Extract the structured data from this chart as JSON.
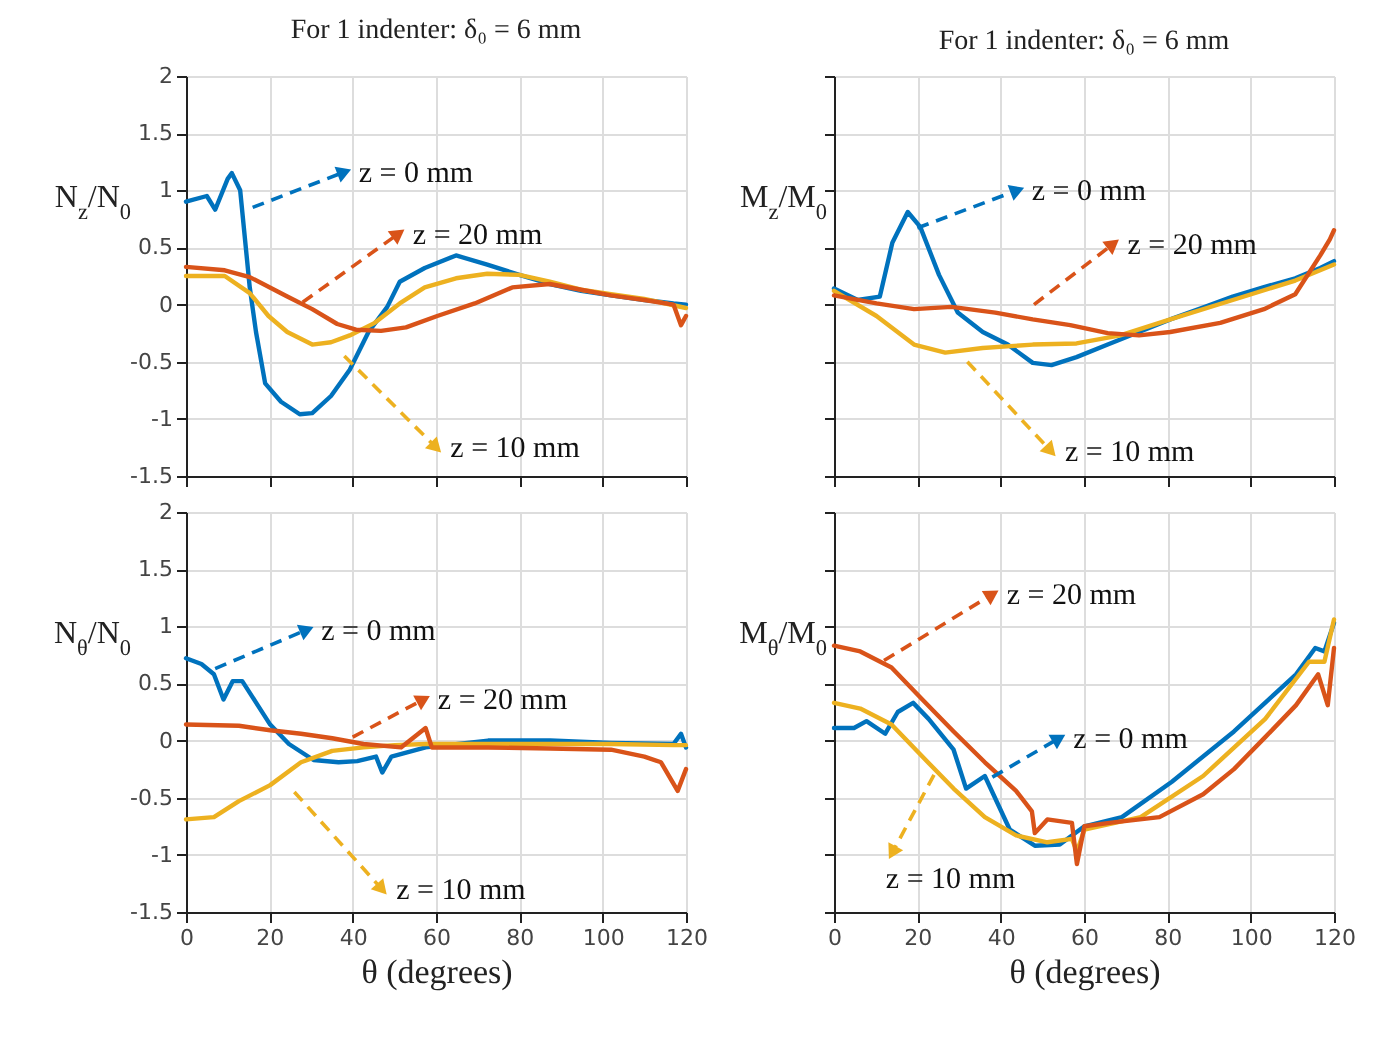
{
  "chart_data": [
    {
      "type": "line",
      "title": "For 1 indenter:  δ₀ = 6 mm",
      "ylabel": "N$_{z}$/N$_{0}$",
      "xlim": [
        0,
        120
      ],
      "ylim": [
        -1.5,
        2
      ],
      "xticks": [
        0,
        20,
        40,
        60,
        80,
        100,
        120
      ],
      "yticks": [
        -1.5,
        -1,
        -0.5,
        0,
        0.5,
        1,
        1.5,
        2
      ],
      "grid": true,
      "tick_labels": "y",
      "legend": "right",
      "series": [
        {
          "name": "z = 0 mm",
          "color": "#0072bd",
          "x": [
            0,
            5,
            7,
            10,
            11,
            13,
            15.3,
            16.8,
            19,
            22.8,
            27.3,
            30.3,
            34.8,
            39.3,
            43.8,
            48.3,
            51.3,
            57.3,
            64.8,
            72.3,
            80,
            87.3,
            94.8,
            102,
            110,
            117,
            120
          ],
          "values": [
            0.9,
            0.95,
            0.83,
            1.1,
            1.15,
            1.0,
            0.15,
            -0.24,
            -0.69,
            -0.85,
            -0.96,
            -0.95,
            -0.8,
            -0.57,
            -0.24,
            -0.02,
            0.2,
            0.32,
            0.43,
            0.35,
            0.26,
            0.18,
            0.12,
            0.08,
            0.04,
            0.01,
            0
          ]
        },
        {
          "name": "z = 10 mm",
          "color": "#edb120",
          "x": [
            0,
            9.3,
            15.3,
            19.8,
            24.3,
            30.3,
            34.8,
            39.3,
            45.3,
            51.3,
            57.3,
            64.8,
            72.3,
            80,
            87.3,
            94.8,
            102,
            110,
            120
          ],
          "values": [
            0.25,
            0.25,
            0.1,
            -0.1,
            -0.24,
            -0.35,
            -0.33,
            -0.27,
            -0.16,
            0.01,
            0.15,
            0.23,
            0.27,
            0.26,
            0.2,
            0.13,
            0.09,
            0.05,
            -0.03
          ]
        },
        {
          "name": "z = 20 mm",
          "color": "#d95319",
          "x": [
            0,
            9.3,
            15.3,
            24.3,
            30.3,
            36.3,
            40.8,
            46.8,
            52.8,
            60.3,
            69.3,
            78.3,
            87.3,
            94.8,
            102,
            110,
            117,
            118.8,
            120
          ],
          "values": [
            0.33,
            0.3,
            0.24,
            0.07,
            -0.04,
            -0.17,
            -0.22,
            -0.23,
            -0.2,
            -0.1,
            0.01,
            0.15,
            0.18,
            0.13,
            0.08,
            0.04,
            0,
            -0.18,
            -0.1
          ]
        }
      ]
    },
    {
      "type": "line",
      "title": "For 1 indenter:  δ₀ = 6 mm",
      "ylabel": "M$_{z}$/M$_{0}$",
      "xlim": [
        0,
        120
      ],
      "ylim": [
        -1.5,
        2
      ],
      "xticks": [
        0,
        20,
        40,
        60,
        80,
        100,
        120
      ],
      "yticks": [
        -1.5,
        -1,
        -0.5,
        0,
        0.5,
        1,
        1.5,
        2
      ],
      "grid": true,
      "tick_labels": false,
      "legend": "right",
      "series": [
        {
          "name": "z = 0 mm",
          "color": "#0072bd",
          "x": [
            0,
            5.7,
            11,
            14,
            17.7,
            20.7,
            25.2,
            29.7,
            35.7,
            41.7,
            47.7,
            52.2,
            58.2,
            65.7,
            73.2,
            80.7,
            88.2,
            95.7,
            103,
            110.7,
            116.7,
            120
          ],
          "values": [
            0.14,
            0.04,
            0.07,
            0.54,
            0.81,
            0.68,
            0.26,
            -0.07,
            -0.24,
            -0.35,
            -0.51,
            -0.53,
            -0.46,
            -0.35,
            -0.24,
            -0.13,
            -0.03,
            0.07,
            0.15,
            0.23,
            0.32,
            0.38
          ]
        },
        {
          "name": "z = 10 mm",
          "color": "#edb120",
          "x": [
            0,
            10.2,
            19.2,
            26.7,
            35.7,
            47.7,
            58.2,
            68.7,
            80.7,
            95.7,
            110.7,
            120
          ],
          "values": [
            0.12,
            -0.1,
            -0.35,
            -0.42,
            -0.38,
            -0.35,
            -0.34,
            -0.27,
            -0.13,
            0.04,
            0.21,
            0.35
          ]
        },
        {
          "name": "z = 20 mm",
          "color": "#d95319",
          "x": [
            0,
            10.2,
            19.2,
            28.2,
            38.7,
            47.7,
            56.7,
            65.7,
            73.2,
            80.7,
            92.7,
            103.2,
            110.7,
            116.7,
            119,
            120
          ],
          "values": [
            0.08,
            0.01,
            -0.04,
            -0.02,
            -0.07,
            -0.13,
            -0.18,
            -0.25,
            -0.27,
            -0.24,
            -0.16,
            -0.04,
            0.09,
            0.43,
            0.57,
            0.65
          ]
        }
      ]
    },
    {
      "type": "line",
      "xlabel": "θ (degrees)",
      "ylabel": "N$_{θ}$/N$_{0}$",
      "xlim": [
        0,
        120
      ],
      "ylim": [
        -1.5,
        2
      ],
      "xticks": [
        0,
        20,
        40,
        60,
        80,
        100,
        120
      ],
      "yticks": [
        -1.5,
        -1,
        -0.5,
        0,
        0.5,
        1,
        1.5,
        2
      ],
      "grid": true,
      "legend": "bottom left",
      "series": [
        {
          "name": "z = 0 mm",
          "color": "#0072bd",
          "x": [
            0,
            3.7,
            6.7,
            9,
            11.2,
            13.5,
            17.2,
            20.2,
            24.7,
            30.6,
            36.6,
            41.1,
            45.6,
            47.1,
            49.3,
            57.5,
            72.5,
            87.4,
            102,
            117,
            118.8,
            120
          ],
          "values": [
            0.72,
            0.67,
            0.58,
            0.36,
            0.52,
            0.52,
            0.31,
            0.14,
            -0.03,
            -0.17,
            -0.19,
            -0.18,
            -0.14,
            -0.28,
            -0.14,
            -0.06,
            0,
            0,
            -0.02,
            -0.03,
            0.06,
            -0.06
          ]
        },
        {
          "name": "z = 10 mm",
          "color": "#edb120",
          "x": [
            0,
            6.7,
            12.7,
            20.2,
            27.6,
            35.1,
            42.6,
            50.1,
            57.5,
            72.5,
            87.4,
            102,
            117,
            120
          ],
          "values": [
            -0.69,
            -0.67,
            -0.53,
            -0.39,
            -0.19,
            -0.09,
            -0.06,
            -0.04,
            -0.03,
            -0.03,
            -0.03,
            -0.03,
            -0.04,
            -0.04
          ]
        },
        {
          "name": "z = 20 mm",
          "color": "#d95319",
          "x": [
            0,
            12.7,
            20.2,
            27.6,
            35.1,
            42.6,
            51.6,
            57.5,
            59,
            72.5,
            87.4,
            102,
            110,
            114,
            118,
            120
          ],
          "values": [
            0.14,
            0.13,
            0.09,
            0.06,
            0.02,
            -0.03,
            -0.06,
            0.11,
            -0.06,
            -0.06,
            -0.07,
            -0.08,
            -0.14,
            -0.19,
            -0.44,
            -0.25
          ]
        }
      ]
    },
    {
      "type": "line",
      "xlabel": "θ (degrees)",
      "ylabel": "M$_{θ}$/M$_{0}$",
      "xlim": [
        0,
        120
      ],
      "ylim": [
        -1.5,
        2
      ],
      "xticks": [
        0,
        20,
        40,
        60,
        80,
        100,
        120
      ],
      "yticks": [
        -1.5,
        -1,
        -0.5,
        0,
        0.5,
        1,
        1.5,
        2
      ],
      "grid": true,
      "tick_labels": "x",
      "legend": "center",
      "series": [
        {
          "name": "z = 0 mm",
          "color": "#0072bd",
          "x": [
            0,
            4.8,
            7.8,
            12.3,
            15.3,
            19,
            22.7,
            28.7,
            31.7,
            36.2,
            42.2,
            48.2,
            54.2,
            60.1,
            69.1,
            81.1,
            96,
            110.9,
            115.5,
            117.7,
            120
          ],
          "values": [
            0.11,
            0.11,
            0.17,
            0.06,
            0.25,
            0.33,
            0.19,
            -0.08,
            -0.42,
            -0.31,
            -0.78,
            -0.92,
            -0.91,
            -0.75,
            -0.67,
            -0.36,
            0.08,
            0.58,
            0.81,
            0.78,
            1.03
          ]
        },
        {
          "name": "z = 10 mm",
          "color": "#edb120",
          "x": [
            0,
            6.3,
            13.8,
            21.2,
            28.7,
            36.2,
            43.7,
            51.2,
            57.1,
            58.3,
            60.1,
            73.6,
            88.6,
            103.5,
            114,
            117.7,
            120
          ],
          "values": [
            0.33,
            0.28,
            0.14,
            -0.14,
            -0.42,
            -0.67,
            -0.83,
            -0.89,
            -0.86,
            -0.97,
            -0.78,
            -0.67,
            -0.31,
            0.19,
            0.69,
            0.69,
            1.06
          ]
        },
        {
          "name": "z = 20 mm",
          "color": "#d95319",
          "x": [
            0,
            6.3,
            13.8,
            21.2,
            28.7,
            36.2,
            43.7,
            47.5,
            48.2,
            51.2,
            57.1,
            58.3,
            60.1,
            66.1,
            78.1,
            88.6,
            96,
            103.5,
            110.9,
            116.2,
            118.5,
            120
          ],
          "values": [
            0.83,
            0.78,
            0.64,
            0.36,
            0.08,
            -0.19,
            -0.44,
            -0.62,
            -0.81,
            -0.69,
            -0.72,
            -1.08,
            -0.75,
            -0.72,
            -0.67,
            -0.47,
            -0.25,
            0.03,
            0.31,
            0.58,
            0.31,
            0.81
          ]
        }
      ]
    }
  ]
}
